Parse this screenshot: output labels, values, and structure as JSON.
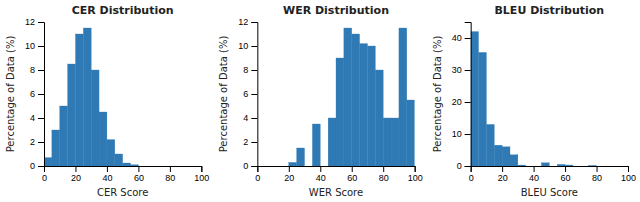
{
  "chart_data": [
    {
      "type": "histogram",
      "title": "CER Distribution",
      "x_label": "CER Score",
      "y_label": "Percentage of Data (%)",
      "bins": [
        0,
        5,
        10,
        15,
        20,
        25,
        30,
        35,
        40,
        45,
        50,
        55,
        60
      ],
      "values": [
        0.7,
        3.0,
        5.0,
        8.5,
        11.0,
        11.5,
        8.0,
        4.5,
        2.2,
        1.0,
        0.25,
        0.1
      ],
      "color": "#2f7ab4",
      "xlim": [
        0,
        100
      ],
      "ylim": [
        0,
        12
      ],
      "xticks": [
        0,
        20,
        40,
        60,
        80,
        100
      ],
      "yticks": [
        0,
        2,
        4,
        6,
        8,
        10,
        12
      ],
      "grid": false
    },
    {
      "type": "histogram",
      "title": "WER Distribution",
      "x_label": "WER Score",
      "y_label": "Percentage of Data (%)",
      "bins": [
        20,
        25,
        30,
        35,
        40,
        45,
        50,
        55,
        60,
        65,
        70,
        75,
        80,
        85,
        90,
        95,
        100
      ],
      "values": [
        0.3,
        1.5,
        0.0,
        3.5,
        0.0,
        4.0,
        9.0,
        11.5,
        11.0,
        10.2,
        10.0,
        8.0,
        4.0,
        4.0,
        11.5,
        5.5
      ],
      "color": "#2f7ab4",
      "xlim": [
        0,
        100
      ],
      "ylim": [
        0,
        12
      ],
      "xticks": [
        0,
        20,
        40,
        60,
        80,
        100
      ],
      "yticks": [
        0,
        2,
        4,
        6,
        8,
        10,
        12
      ],
      "grid": false
    },
    {
      "type": "histogram",
      "title": "BLEU Distribution",
      "x_label": "BLEU Score",
      "y_label": "Percentage of Data (%)",
      "bins": [
        0,
        5,
        10,
        15,
        20,
        25,
        30,
        35,
        40,
        45,
        50,
        55,
        60,
        65,
        70,
        75,
        80
      ],
      "values": [
        42.0,
        35.5,
        13.0,
        6.5,
        6.0,
        3.5,
        0.3,
        0.0,
        0.0,
        1.0,
        0.0,
        0.5,
        0.3,
        0.0,
        0.0,
        0.15
      ],
      "color": "#2f7ab4",
      "xlim": [
        0,
        100
      ],
      "ylim": [
        0,
        45
      ],
      "xticks": [
        0,
        20,
        40,
        60,
        80,
        100
      ],
      "yticks": [
        0,
        10,
        20,
        30,
        40
      ],
      "grid": false
    }
  ]
}
